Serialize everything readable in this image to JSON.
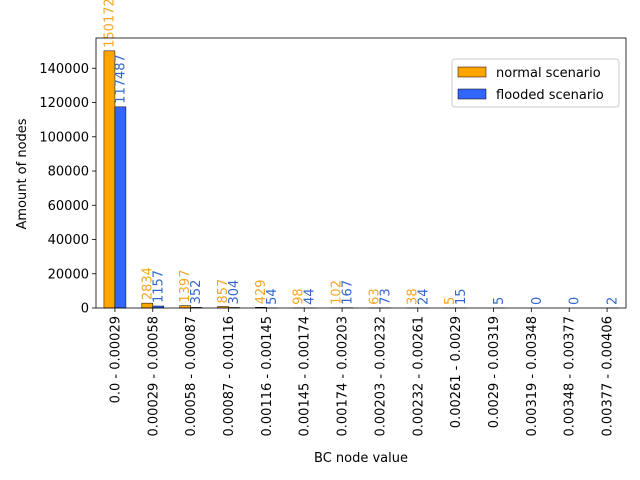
{
  "chart_data": {
    "type": "bar",
    "title": "",
    "xlabel": "BC node value",
    "ylabel": "Amount of nodes",
    "ylim": [
      0,
      157680
    ],
    "yticks": [
      0,
      20000,
      40000,
      60000,
      80000,
      100000,
      120000,
      140000
    ],
    "grid": false,
    "legend_position": "top-right",
    "categories": [
      "0.0 - 0.00029",
      "0.00029 - 0.00058",
      "0.00058 - 0.00087",
      "0.00087 - 0.00116",
      "0.00116 - 0.00145",
      "0.00145 - 0.00174",
      "0.00174 - 0.00203",
      "0.00203 - 0.00232",
      "0.00232 - 0.00261",
      "0.00261 - 0.0029",
      "0.0029 - 0.00319",
      "0.00319 - 0.00348",
      "0.00348 - 0.00377",
      "0.00377 - 0.00406"
    ],
    "series": [
      {
        "name": "normal scenario",
        "color": "#ffa500",
        "label_color": "#f5a623",
        "values": [
          150172,
          2834,
          1397,
          857,
          429,
          98,
          102,
          63,
          38,
          5,
          null,
          null,
          null,
          null
        ]
      },
      {
        "name": "flooded scenario",
        "color": "#3366ff",
        "label_color": "#3366cc",
        "values": [
          117487,
          1157,
          352,
          304,
          54,
          44,
          167,
          73,
          24,
          15,
          5,
          0,
          0,
          2
        ]
      }
    ]
  }
}
